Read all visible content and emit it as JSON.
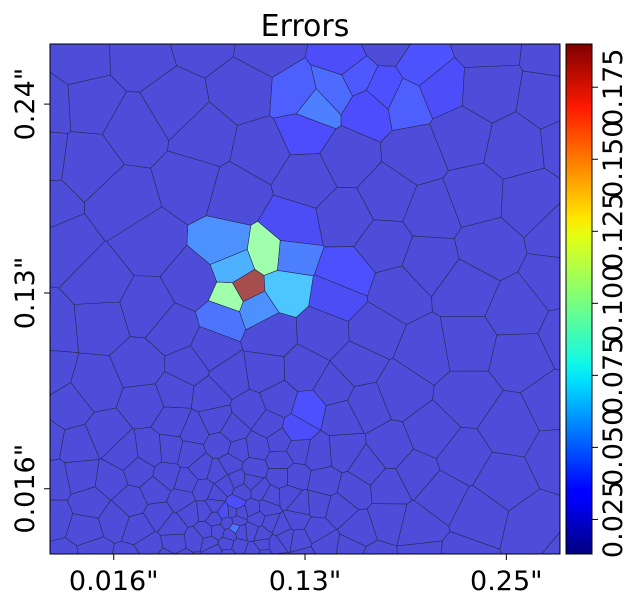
{
  "chart_data": {
    "type": "heatmap",
    "subtype": "voronoi-cell-map",
    "title": "Errors",
    "xlabel": "",
    "ylabel": "",
    "x_tick_labels": [
      "0.016\"",
      "0.13\"",
      "0.25\""
    ],
    "y_tick_labels": [
      "0.24\"",
      "0.13\"",
      "0.016\""
    ],
    "x_ticks": [
      0.016,
      0.13,
      0.25
    ],
    "y_ticks": [
      0.24,
      0.13,
      0.016
    ],
    "xlim": [
      -0.022,
      0.282
    ],
    "ylim": [
      -0.022,
      0.275
    ],
    "colorbar": {
      "colormap": "jet",
      "range": [
        0.013,
        0.19
      ],
      "tick_values": [
        0.025,
        0.05,
        0.075,
        0.1,
        0.125,
        0.15,
        0.175
      ],
      "tick_labels": [
        "0.025",
        "0.050",
        "0.075",
        "0.100",
        "0.125",
        "0.150",
        "0.175"
      ],
      "placement": "right"
    },
    "background_value": 0.026,
    "highlight_cells": [
      {
        "x": 0.095,
        "y": 0.132,
        "value": 0.19
      },
      {
        "x": 0.109,
        "y": 0.153,
        "value": 0.1
      },
      {
        "x": 0.086,
        "y": 0.127,
        "value": 0.1
      },
      {
        "x": 0.087,
        "y": 0.145,
        "value": 0.06
      },
      {
        "x": 0.117,
        "y": 0.133,
        "value": 0.065
      },
      {
        "x": 0.082,
        "y": 0.157,
        "value": 0.052
      },
      {
        "x": 0.1,
        "y": 0.122,
        "value": 0.052
      },
      {
        "x": 0.12,
        "y": 0.152,
        "value": 0.048
      },
      {
        "x": 0.082,
        "y": 0.116,
        "value": 0.045
      },
      {
        "x": 0.148,
        "y": 0.25,
        "value": 0.043
      },
      {
        "x": 0.135,
        "y": 0.238,
        "value": 0.048
      },
      {
        "x": 0.126,
        "y": 0.245,
        "value": 0.04
      },
      {
        "x": 0.16,
        "y": 0.256,
        "value": 0.038
      },
      {
        "x": 0.177,
        "y": 0.248,
        "value": 0.036
      },
      {
        "x": 0.19,
        "y": 0.242,
        "value": 0.04
      },
      {
        "x": 0.2,
        "y": 0.262,
        "value": 0.037
      },
      {
        "x": 0.168,
        "y": 0.238,
        "value": 0.035
      },
      {
        "x": 0.13,
        "y": 0.225,
        "value": 0.035
      },
      {
        "x": 0.153,
        "y": 0.265,
        "value": 0.034
      },
      {
        "x": 0.21,
        "y": 0.25,
        "value": 0.034
      },
      {
        "x": 0.155,
        "y": 0.14,
        "value": 0.036
      },
      {
        "x": 0.15,
        "y": 0.128,
        "value": 0.033
      },
      {
        "x": 0.122,
        "y": 0.168,
        "value": 0.033
      },
      {
        "x": 0.132,
        "y": 0.062,
        "value": 0.036
      },
      {
        "x": 0.125,
        "y": 0.05,
        "value": 0.034
      },
      {
        "x": 0.089,
        "y": 0.007,
        "value": 0.034
      },
      {
        "x": 0.088,
        "y": -0.007,
        "value": 0.045
      },
      {
        "x": 0.082,
        "y": 0.002,
        "value": 0.033
      }
    ]
  }
}
